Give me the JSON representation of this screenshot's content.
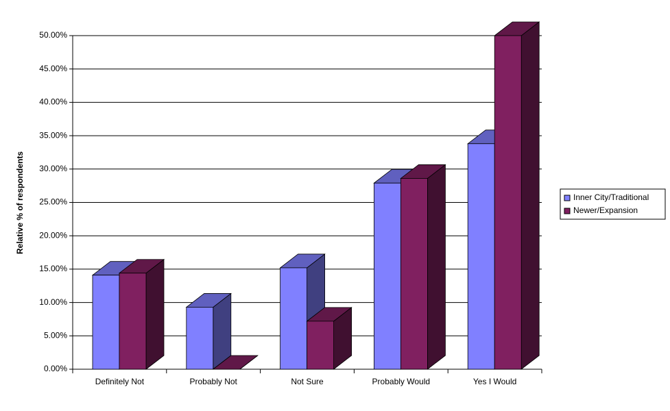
{
  "chart_data": {
    "type": "bar3d",
    "y_label": "Relative % of respondents",
    "categories": [
      "Definitely Not",
      "Probably Not",
      "Not Sure",
      "Probably Would",
      "Yes I Would"
    ],
    "series": [
      {
        "name": "Inner City/Traditional",
        "color": "#8080ff",
        "values": [
          14.1,
          9.3,
          15.2,
          27.9,
          33.8
        ]
      },
      {
        "name": "Newer/Expansion",
        "color": "#802060",
        "values": [
          14.4,
          0,
          7.2,
          28.6,
          50.0
        ]
      }
    ],
    "ylim": [
      0,
      50
    ],
    "yticks": [
      {
        "value": 0,
        "label": "0.00%"
      },
      {
        "value": 5,
        "label": "5.00%"
      },
      {
        "value": 10,
        "label": "10.00%"
      },
      {
        "value": 15,
        "label": "15.00%"
      },
      {
        "value": 20,
        "label": "20.00%"
      },
      {
        "value": 25,
        "label": "25.00%"
      },
      {
        "value": 30,
        "label": "30.00%"
      },
      {
        "value": 35,
        "label": "35.00%"
      },
      {
        "value": 40,
        "label": "40.00%"
      },
      {
        "value": 45,
        "label": "45.00%"
      },
      {
        "value": 50,
        "label": "50.00%"
      }
    ],
    "grid": true,
    "legend": "right"
  }
}
